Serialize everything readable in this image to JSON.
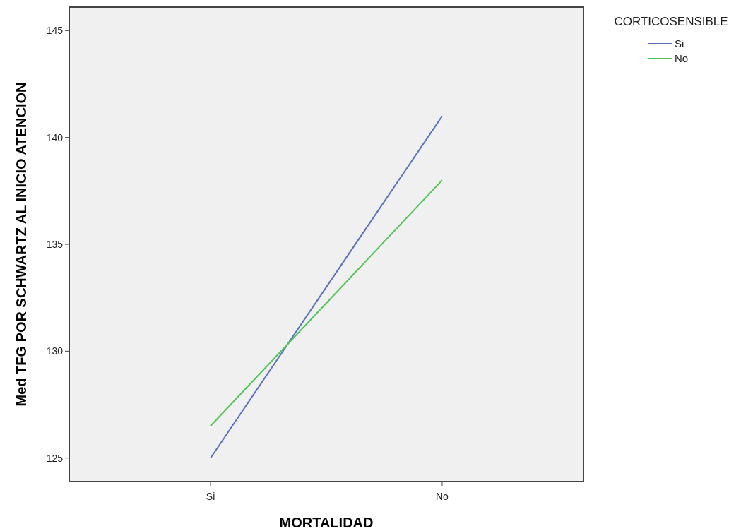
{
  "chart_data": {
    "type": "line",
    "xlabel": "MORTALIDAD",
    "ylabel": "Med TFG POR SCHWARTZ AL INICIO ATENCION",
    "legend_title": "CORTICOSENSIBLE",
    "legend": "top right",
    "categories": [
      "Si",
      "No"
    ],
    "series": [
      {
        "name": "Si",
        "color": "#5b6fbf",
        "values": [
          125,
          141
        ]
      },
      {
        "name": "No",
        "color": "#4cc552",
        "values": [
          126.5,
          138
        ]
      }
    ],
    "ylim": [
      123.9,
      146.1
    ],
    "yticks": [
      125,
      130,
      135,
      140,
      145
    ],
    "grid": false,
    "marker": "none",
    "line_style": "solid"
  }
}
